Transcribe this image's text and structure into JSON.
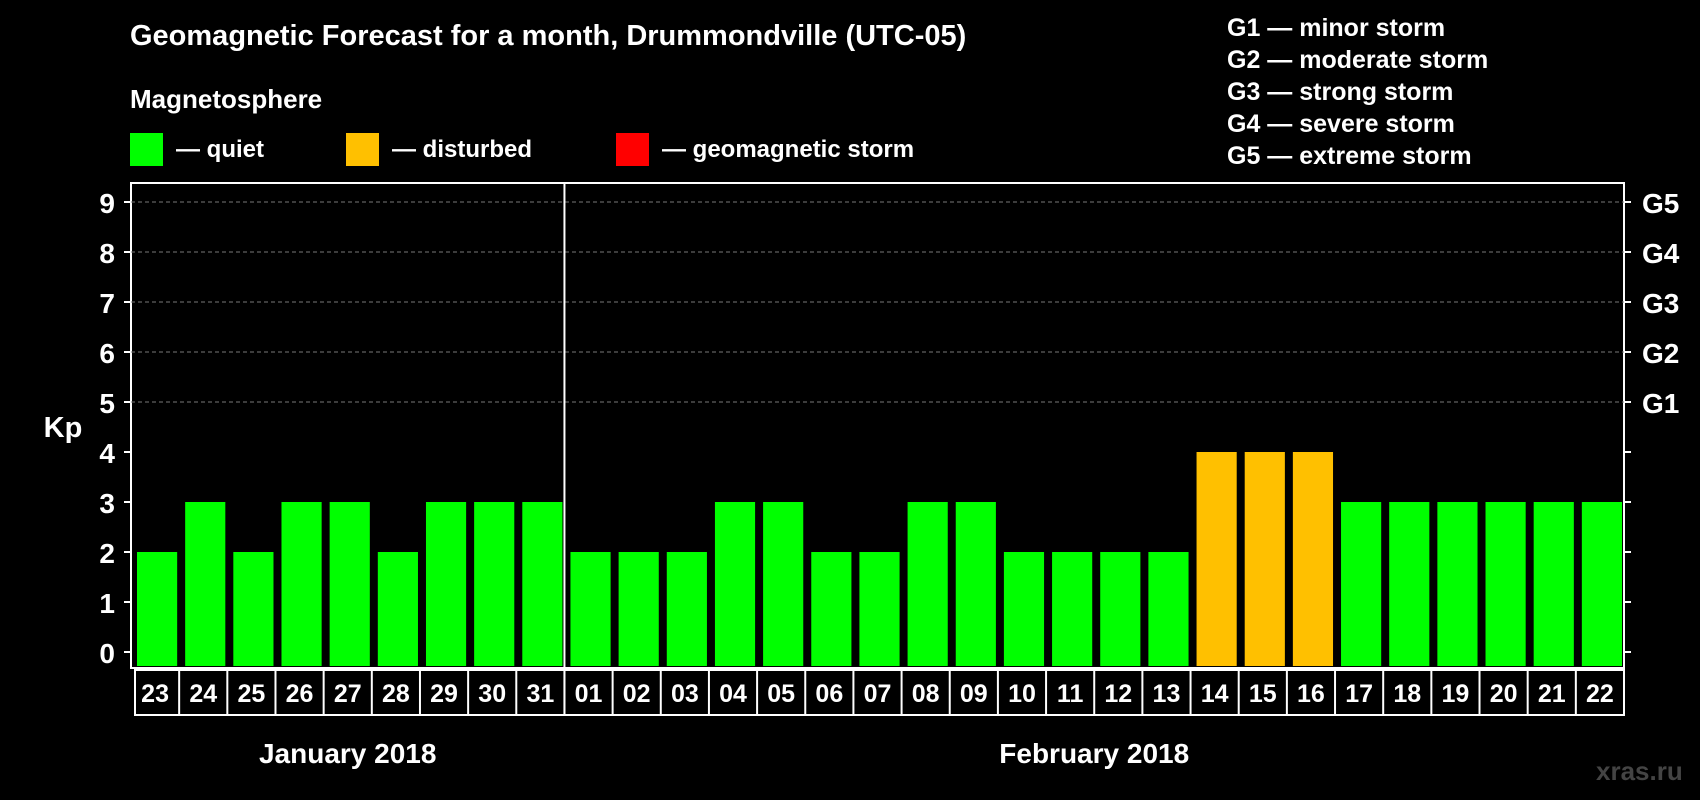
{
  "title": "Geomagnetic Forecast for a month, Drummondville (UTC-05)",
  "subtitle": "Magnetosphere",
  "legend": [
    {
      "color": "#00ff00",
      "label": "— quiet"
    },
    {
      "color": "#ffc000",
      "label": "— disturbed"
    },
    {
      "color": "#ff0000",
      "label": "— geomagnetic storm"
    }
  ],
  "g_legend": [
    "G1 — minor storm",
    "G2 — moderate storm",
    "G3 — strong storm",
    "G4 — severe storm",
    "G5 — extreme storm"
  ],
  "watermark": "xras.ru",
  "chart_data": {
    "type": "bar",
    "ylabel": "Kp",
    "ylim": [
      0,
      9
    ],
    "yticks": [
      "0",
      "1",
      "2",
      "3",
      "4",
      "5",
      "6",
      "7",
      "8",
      "9"
    ],
    "right_ticks": [
      {
        "y": 5,
        "label": "G1"
      },
      {
        "y": 6,
        "label": "G2"
      },
      {
        "y": 7,
        "label": "G3"
      },
      {
        "y": 8,
        "label": "G4"
      },
      {
        "y": 9,
        "label": "G5"
      }
    ],
    "grid": "dashed horizontal lines at 5–9",
    "categories": [
      "23",
      "24",
      "25",
      "26",
      "27",
      "28",
      "29",
      "30",
      "31",
      "01",
      "02",
      "03",
      "04",
      "05",
      "06",
      "07",
      "08",
      "09",
      "10",
      "11",
      "12",
      "13",
      "14",
      "15",
      "16",
      "17",
      "18",
      "19",
      "20",
      "21",
      "22"
    ],
    "values": [
      2,
      3,
      2,
      3,
      3,
      2,
      3,
      3,
      3,
      2,
      2,
      2,
      3,
      3,
      2,
      2,
      3,
      3,
      2,
      2,
      2,
      2,
      4,
      4,
      4,
      3,
      3,
      3,
      3,
      3,
      3
    ],
    "colors": [
      "#00ff00",
      "#00ff00",
      "#00ff00",
      "#00ff00",
      "#00ff00",
      "#00ff00",
      "#00ff00",
      "#00ff00",
      "#00ff00",
      "#00ff00",
      "#00ff00",
      "#00ff00",
      "#00ff00",
      "#00ff00",
      "#00ff00",
      "#00ff00",
      "#00ff00",
      "#00ff00",
      "#00ff00",
      "#00ff00",
      "#00ff00",
      "#00ff00",
      "#ffc000",
      "#ffc000",
      "#ffc000",
      "#00ff00",
      "#00ff00",
      "#00ff00",
      "#00ff00",
      "#00ff00",
      "#00ff00"
    ],
    "month_groups": [
      {
        "label": "January 2018",
        "start": 0,
        "end": 8
      },
      {
        "label": "February 2018",
        "start": 9,
        "end": 30
      }
    ]
  }
}
